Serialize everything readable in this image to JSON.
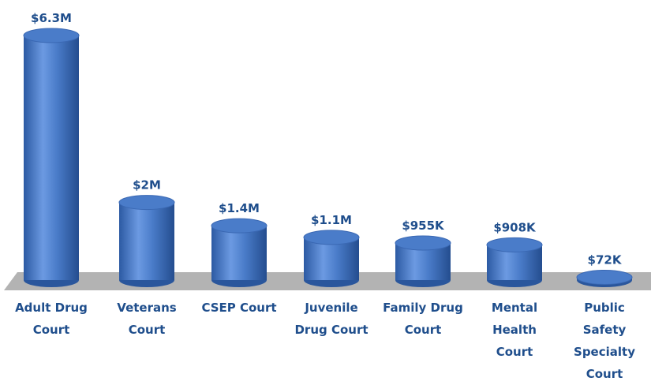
{
  "chart_data": {
    "type": "bar",
    "color": "#4a7cc9",
    "categories": [
      "Adult Drug Court",
      "Veterans Court",
      "CSEP Court",
      "Juvenile Drug Court",
      "Family Drug Court",
      "Mental Health Court",
      "Public Safety Specialty Court"
    ],
    "values": [
      6300000,
      2000000,
      1400000,
      1100000,
      955000,
      908000,
      72000
    ],
    "value_labels": [
      "$6.3M",
      "$2M",
      "$1.4M",
      "$1.1M",
      "$955K",
      "$908K",
      "$72K"
    ]
  }
}
